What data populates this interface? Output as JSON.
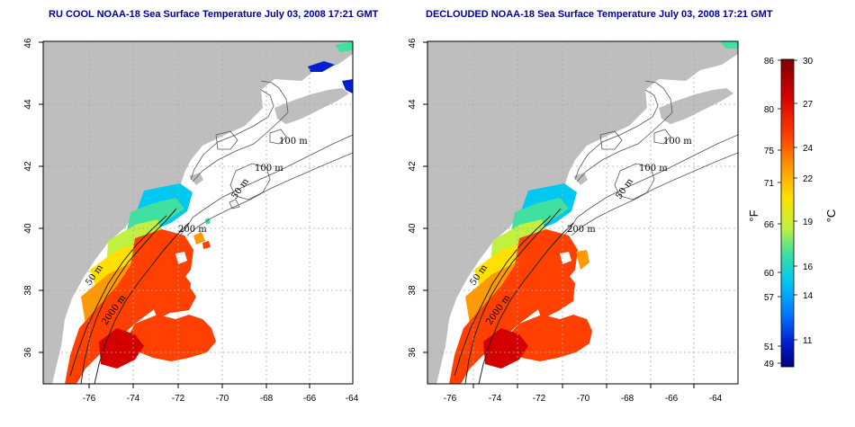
{
  "panels": [
    {
      "title": "RU COOL NOAA-18 Sea Surface Temperature July 03, 2008 17:21 GMT",
      "contour_labels": [
        "100 m",
        "100 m",
        "50 m",
        "200 m",
        "50 m",
        "2000 m"
      ]
    },
    {
      "title": "DECLOUDED NOAA-18 Sea Surface Temperature July 03, 2008 17:21 GMT",
      "contour_labels": [
        "100 m",
        "100 m",
        "50 m",
        "200 m",
        "50 m",
        "2000 m"
      ]
    }
  ],
  "axes": {
    "lon_ticks": [
      "-76",
      "-74",
      "-72",
      "-70",
      "-68",
      "-66",
      "-64"
    ],
    "lat_ticks": [
      "36",
      "38",
      "40",
      "42",
      "44",
      "46"
    ]
  },
  "colorbar": {
    "fahrenheit_ticks": [
      "86",
      "80",
      "75",
      "71",
      "66",
      "60",
      "57",
      "51",
      "49"
    ],
    "celsius_ticks": [
      "30",
      "27",
      "24",
      "22",
      "19",
      "16",
      "14",
      "11"
    ],
    "fahrenheit_unit": "°F",
    "celsius_unit": "°C",
    "colors": [
      "#7f0000",
      "#d40000",
      "#ff4000",
      "#ff9900",
      "#ffe000",
      "#c0f040",
      "#40e0a0",
      "#00c8f0",
      "#0080ff",
      "#0020d0",
      "#000080"
    ]
  }
}
